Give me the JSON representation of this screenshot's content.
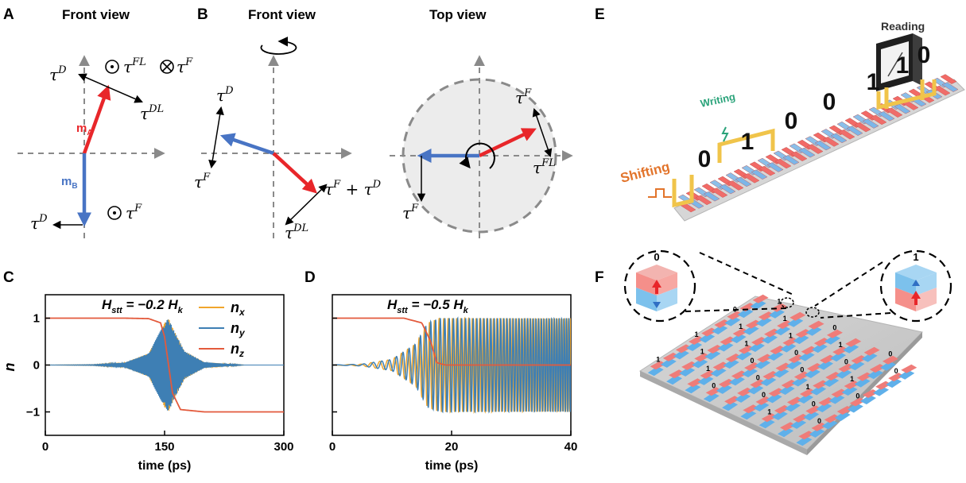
{
  "panels": {
    "A": {
      "label": "A",
      "title": "Front view",
      "torques": {
        "tD_up": "τ",
        "tD_up_sup": "D",
        "tFL": "τ",
        "tFL_sup": "FL",
        "tF_in": "τ",
        "tF_in_sup": "F",
        "tDL": "τ",
        "tDL_sup": "DL",
        "tD_down": "τ",
        "tD_down_sup": "D",
        "tF_out": "τ",
        "tF_out_sup": "F"
      },
      "mA": "m",
      "mA_sub": "A",
      "mB": "m",
      "mB_sub": "B"
    },
    "B": {
      "label": "B",
      "title_front": "Front view",
      "title_top": "Top view",
      "front": {
        "tD": "τ",
        "tD_sup": "D",
        "tF": "τ",
        "tF_sup": "F",
        "tFD": "τ",
        "tFD_sup": "F",
        "tFD_plus": " + τ",
        "tFD_sup2": "D",
        "tDL": "τ",
        "tDL_sup": "DL"
      },
      "top": {
        "tF1": "τ",
        "tF1_sup": "F",
        "tFL": "τ",
        "tFL_sup": "FL",
        "tF2": "τ",
        "tF2_sup": "F"
      }
    },
    "C": {
      "label": "C",
      "title": "H",
      "title_sub": "stt",
      "title_rest": " = −0.2 H",
      "title_sub2": "k"
    },
    "D": {
      "label": "D",
      "title": "H",
      "title_sub": "stt",
      "title_rest": " = −0.5 H",
      "title_sub2": "k"
    },
    "E": {
      "label": "E",
      "reading": "Reading",
      "writing": "Writing",
      "shifting": "Shifting",
      "bits": [
        "0",
        "1",
        "0",
        "0",
        "1",
        "1",
        "0"
      ]
    },
    "F": {
      "label": "F",
      "left_bit": "0",
      "right_bit": "1",
      "grid_bits": [
        "1",
        "0",
        "1",
        "1",
        "0",
        "0",
        "1",
        "0",
        "0",
        "1",
        "0",
        "1",
        "1",
        "0",
        "0",
        "1",
        "0",
        "1",
        "0",
        "1",
        "0",
        "1",
        "1",
        "0",
        "1",
        "0",
        "0",
        "1",
        "0",
        "1"
      ]
    }
  },
  "colors": {
    "red": "#e8262a",
    "blue": "#4874c4",
    "nx": "#f0a62c",
    "ny": "#3e7fb4",
    "nz": "#e35a3c"
  },
  "chart_data": [
    {
      "type": "line",
      "title": "Hstt = −0.2 Hk",
      "xlabel": "time (ps)",
      "ylabel": "n",
      "xlim": [
        0,
        300
      ],
      "ylim": [
        -1.5,
        1.5
      ],
      "xticks": [
        "0",
        "150",
        "300"
      ],
      "yticks": [
        "1",
        "0",
        "−1"
      ],
      "legend": [
        "nx",
        "ny",
        "nz"
      ],
      "legend_position": "top-right",
      "series": [
        {
          "name": "nz",
          "x": [
            0,
            100,
            130,
            145,
            150,
            155,
            160,
            170,
            200,
            300
          ],
          "values": [
            1,
            1,
            0.99,
            0.9,
            0.6,
            0,
            -0.6,
            -0.95,
            -1,
            -1
          ]
        },
        {
          "name": "nx",
          "envelope_x": [
            0,
            60,
            100,
            130,
            150,
            155,
            160,
            175,
            200,
            250,
            300
          ],
          "envelope": [
            0,
            0.01,
            0.05,
            0.25,
            0.9,
            1.0,
            0.8,
            0.3,
            0.06,
            0,
            0
          ]
        },
        {
          "name": "ny",
          "envelope_x": [
            0,
            60,
            100,
            130,
            150,
            155,
            160,
            175,
            200,
            250,
            300
          ],
          "envelope": [
            0,
            0.01,
            0.05,
            0.25,
            0.9,
            1.0,
            0.8,
            0.3,
            0.06,
            0,
            0
          ]
        }
      ]
    },
    {
      "type": "line",
      "title": "Hstt = −0.5 Hk",
      "xlabel": "time (ps)",
      "ylabel": "",
      "xlim": [
        0,
        40
      ],
      "ylim": [
        -1.5,
        1.5
      ],
      "xticks": [
        "0",
        "20",
        "40"
      ],
      "yticks": [
        "",
        "",
        ""
      ],
      "series": [
        {
          "name": "nz",
          "x": [
            0,
            12,
            15,
            16.5,
            17.5,
            19,
            20,
            40
          ],
          "values": [
            1,
            1,
            0.9,
            0.5,
            0.05,
            0,
            0,
            0
          ]
        },
        {
          "name": "nx",
          "envelope_x": [
            0,
            5,
            10,
            14,
            16,
            18,
            40
          ],
          "envelope": [
            0,
            0.02,
            0.12,
            0.45,
            0.9,
            1,
            1
          ]
        },
        {
          "name": "ny",
          "envelope_x": [
            0,
            5,
            10,
            14,
            16,
            18,
            40
          ],
          "envelope": [
            0,
            0.02,
            0.12,
            0.45,
            0.9,
            1,
            1
          ]
        }
      ]
    }
  ]
}
